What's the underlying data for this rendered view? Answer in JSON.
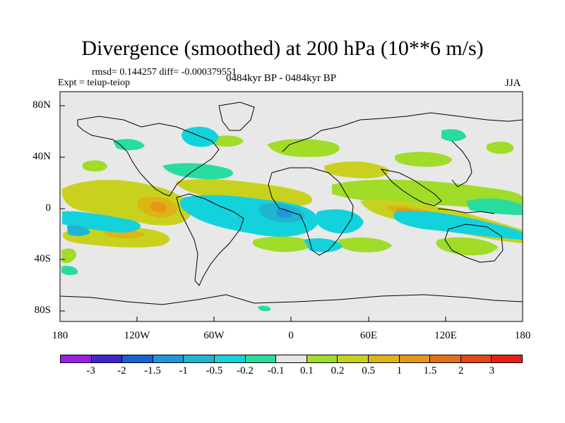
{
  "title": "Divergence (smoothed) at 200 hPa (10**6 m/s)",
  "stats": "rmsd= 0.144257 diff= -0.000379551",
  "expt": "Expt = teiup-teiop",
  "period": "0484kyr BP - 0484kyr BP",
  "season": "JJA",
  "map": {
    "lat_ticks": [
      "80N",
      "40N",
      "0",
      "40S",
      "80S"
    ],
    "lon_ticks": [
      "180",
      "120W",
      "60W",
      "0",
      "60E",
      "120E",
      "180"
    ],
    "background": "#e8e8e8"
  },
  "colorbar": {
    "colors": [
      "#9a1ee6",
      "#3c28d2",
      "#1464d2",
      "#1e96dc",
      "#1eb4d2",
      "#14d2dc",
      "#28dca0",
      "#e6e6e6",
      "#a0dc28",
      "#c8d21e",
      "#dcb414",
      "#e69614",
      "#e66e14",
      "#e64614",
      "#e61e14"
    ],
    "labels": [
      "-3",
      "-2",
      "-1.5",
      "-1",
      "-0.5",
      "-0.2",
      "-0.1",
      "0.1",
      "0.2",
      "0.5",
      "1",
      "1.5",
      "2",
      "3"
    ]
  }
}
